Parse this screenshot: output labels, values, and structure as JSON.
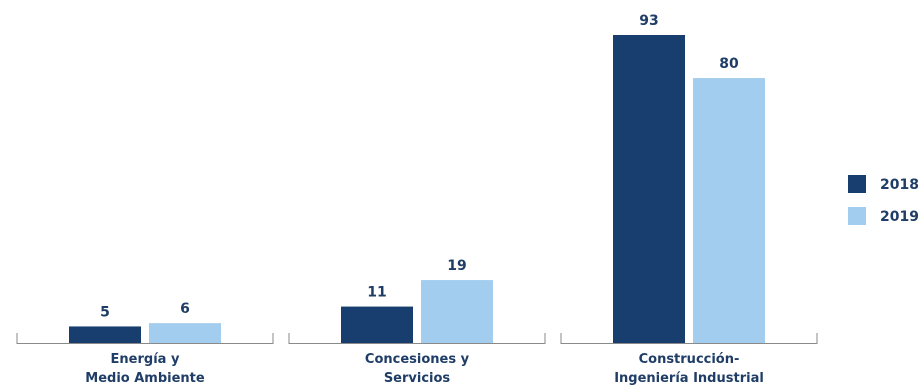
{
  "chart_data": {
    "type": "bar",
    "categories": [
      [
        "Energía y",
        "Medio Ambiente"
      ],
      [
        "Concesiones y",
        "Servicios"
      ],
      [
        "Construcción-",
        "Ingeniería Industrial"
      ]
    ],
    "series": [
      {
        "name": "2018",
        "values": [
          5,
          11,
          93
        ],
        "color": "#173e6f"
      },
      {
        "name": "2019",
        "values": [
          6,
          19,
          80
        ],
        "color": "#a2cdee"
      }
    ],
    "ylim": [
      0,
      93
    ],
    "grid": false,
    "legend_position": "right",
    "value_labels": true
  }
}
